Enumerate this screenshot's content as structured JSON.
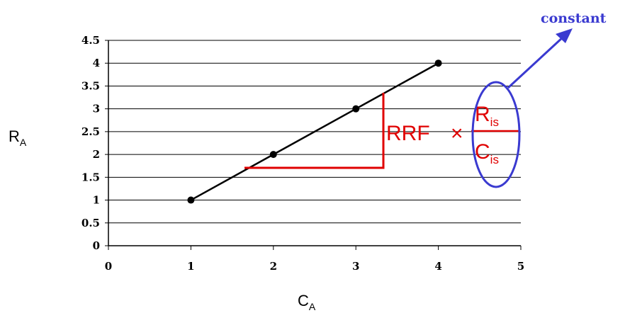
{
  "chart_data": {
    "type": "line",
    "x": [
      1,
      2,
      3,
      4
    ],
    "series": [
      {
        "values": [
          1,
          2,
          3,
          4
        ]
      }
    ],
    "xlim": [
      0,
      5
    ],
    "ylim": [
      0,
      4.5
    ],
    "x_ticks": [
      "0",
      "1",
      "2",
      "3",
      "4",
      "5"
    ],
    "y_ticks": [
      "0",
      "0.5",
      "1",
      "1.5",
      "2",
      "2.5",
      "3",
      "3.5",
      "4",
      "4.5"
    ],
    "grid": "horizontal",
    "xlabel": {
      "main": "C",
      "sub": "A"
    },
    "ylabel": {
      "main": "R",
      "sub": "A"
    },
    "annotation": {
      "slope_text": "RRF",
      "times": "×",
      "numerator": {
        "main": "R",
        "sub": "is"
      },
      "denominator": {
        "main": "C",
        "sub": "is"
      },
      "note": "constant"
    },
    "colors": {
      "line": "#000000",
      "slope": "#e00000",
      "note": "#3a3ad0"
    }
  }
}
